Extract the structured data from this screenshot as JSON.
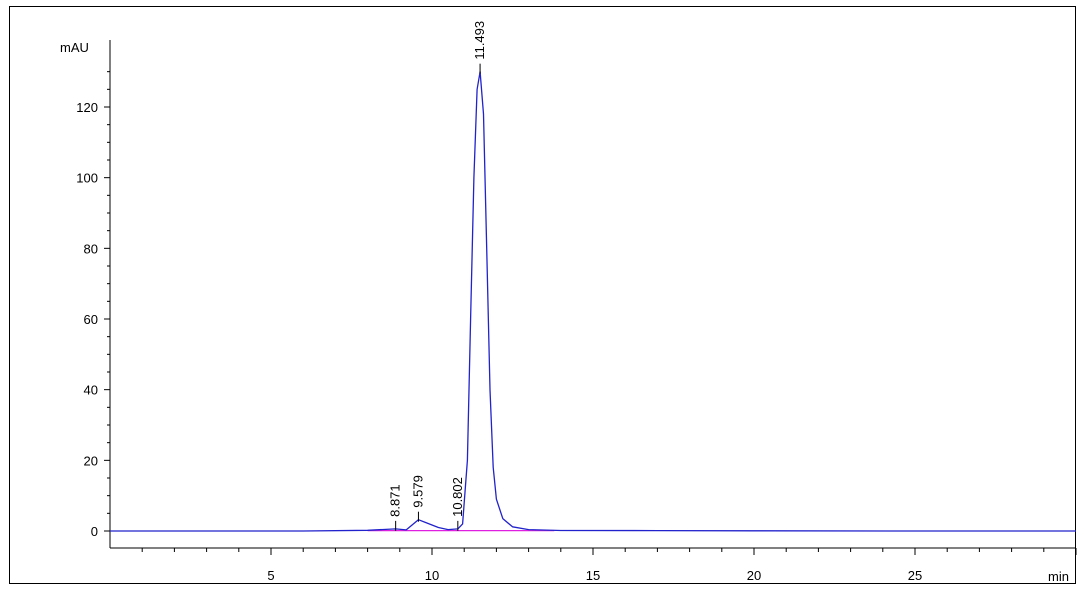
{
  "chart_data": {
    "type": "line",
    "ylabel": "mAU",
    "xlabel": "min",
    "xlim": [
      0,
      30
    ],
    "ylim": [
      -5,
      137
    ],
    "x_ticks": [
      5,
      10,
      15,
      20,
      25
    ],
    "y_ticks": [
      0,
      20,
      40,
      60,
      80,
      100,
      120
    ],
    "x_tick_labels": [
      "5",
      "10",
      "15",
      "20",
      "25"
    ],
    "y_tick_labels": [
      "0",
      "20",
      "40",
      "60",
      "80",
      "100",
      "120"
    ],
    "colors": {
      "signal": "#2222cc",
      "baseline": "#e020e0",
      "axis": "#000000"
    },
    "peak_labels": [
      {
        "label": "8.871",
        "rt": 8.871
      },
      {
        "label": "9.579",
        "rt": 9.579
      },
      {
        "label": "10.802",
        "rt": 10.802
      },
      {
        "label": "11.493",
        "rt": 11.493
      }
    ],
    "series": [
      {
        "values": [
          [
            0.0,
            0.0
          ],
          [
            6.0,
            0.0
          ],
          [
            8.0,
            0.2
          ],
          [
            8.871,
            0.6
          ],
          [
            9.2,
            0.3
          ],
          [
            9.579,
            3.2
          ],
          [
            9.8,
            2.4
          ],
          [
            10.2,
            1.0
          ],
          [
            10.5,
            0.4
          ],
          [
            10.802,
            0.6
          ],
          [
            10.95,
            2.0
          ],
          [
            11.1,
            20.0
          ],
          [
            11.2,
            60.0
          ],
          [
            11.3,
            100.0
          ],
          [
            11.4,
            125.0
          ],
          [
            11.493,
            130.0
          ],
          [
            11.6,
            118.0
          ],
          [
            11.7,
            80.0
          ],
          [
            11.8,
            40.0
          ],
          [
            11.9,
            18.0
          ],
          [
            12.0,
            9.0
          ],
          [
            12.2,
            3.5
          ],
          [
            12.5,
            1.2
          ],
          [
            13.0,
            0.4
          ],
          [
            14.0,
            0.15
          ],
          [
            17.0,
            0.1
          ],
          [
            20.0,
            0.05
          ],
          [
            25.0,
            0.0
          ],
          [
            30.0,
            0.0
          ]
        ]
      }
    ]
  }
}
